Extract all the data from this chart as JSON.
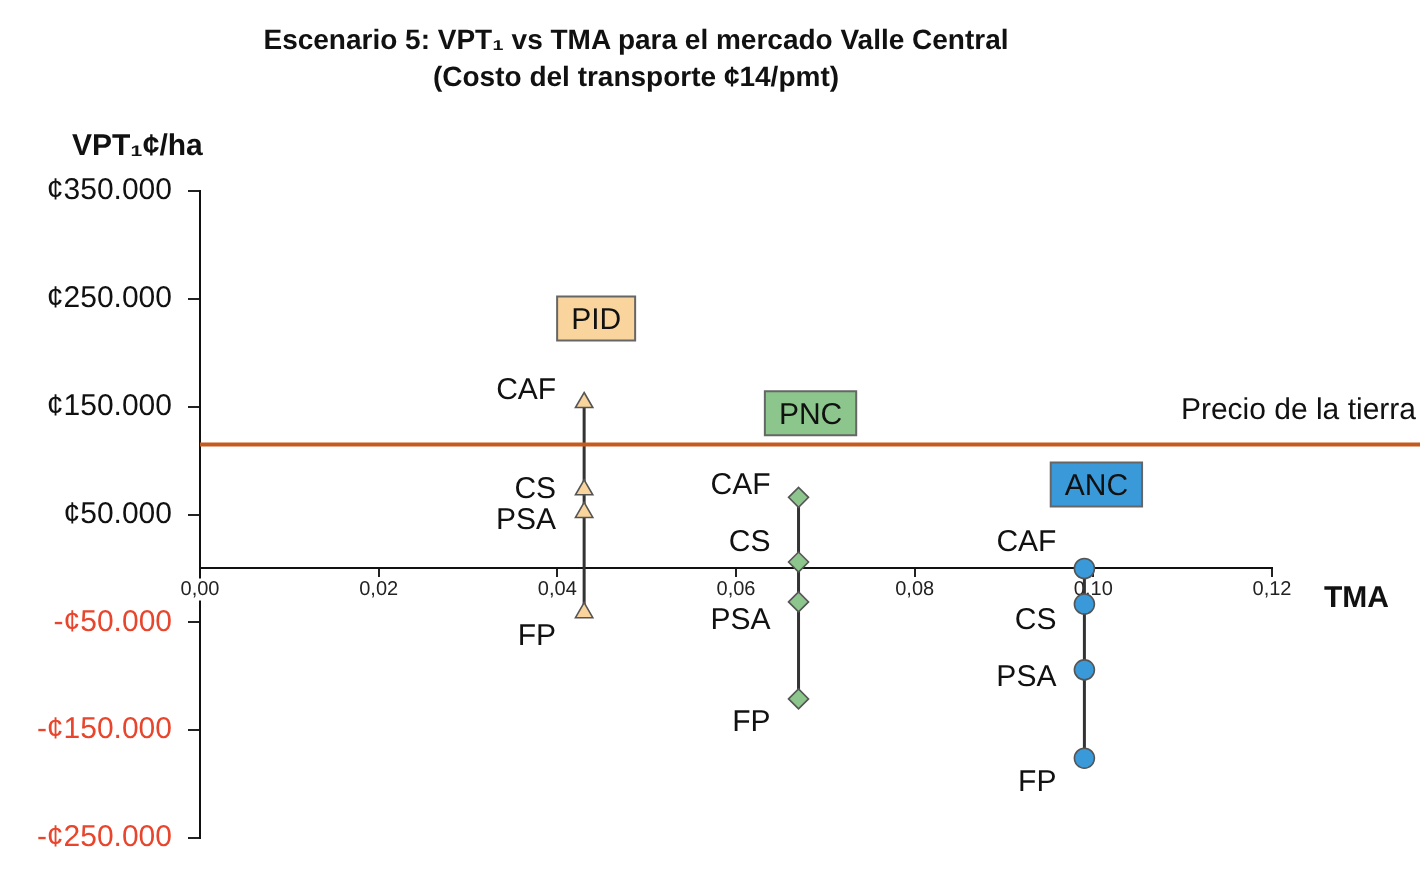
{
  "chart_data": {
    "type": "line",
    "title": "Escenario 5: VPT₁ vs TMA para el mercado Valle Central",
    "subtitle": "(Costo del transporte ¢14/pmt)",
    "xlabel": "TMA",
    "ylabel": "VPT₁¢/ha",
    "xlim": [
      0,
      0.12
    ],
    "xticks": [
      {
        "value": 0,
        "label": "0,00"
      },
      {
        "value": 0.02,
        "label": "0,02"
      },
      {
        "value": 0.04,
        "label": "0,04"
      },
      {
        "value": 0.06,
        "label": "0,06"
      },
      {
        "value": 0.08,
        "label": "0,08"
      },
      {
        "value": 0.1,
        "label": "0,10"
      },
      {
        "value": 0.12,
        "label": "0,12"
      }
    ],
    "ylim": [
      -250000,
      350000
    ],
    "yticks": [
      {
        "value": -250000,
        "label": "-¢250.000"
      },
      {
        "value": -150000,
        "label": "-¢150.000"
      },
      {
        "value": -50000,
        "label": "-¢50.000"
      },
      {
        "value": 50000,
        "label": "¢50.000"
      },
      {
        "value": 150000,
        "label": "¢150.000"
      },
      {
        "value": 250000,
        "label": "¢250.000"
      },
      {
        "value": 350000,
        "label": "¢350.000"
      }
    ],
    "grid": false,
    "legend": false,
    "series": [
      {
        "name": "PID",
        "color": "#f9d49c",
        "marker": "triangle",
        "x": [
          0.043,
          0.043,
          0.043,
          0.043
        ],
        "values": [
          154000,
          73000,
          52000,
          -41000
        ]
      },
      {
        "name": "PNC",
        "color": "#8cc68c",
        "marker": "diamond",
        "x": [
          0.067,
          0.067,
          0.067,
          0.067
        ],
        "values": [
          66000,
          6000,
          -31000,
          -121000
        ]
      },
      {
        "name": "ANC",
        "color": "#3a9ad9",
        "marker": "circle",
        "x": [
          0.099,
          0.099,
          0.099,
          0.099
        ],
        "values": [
          0,
          -33000,
          -94000,
          -176000
        ]
      }
    ],
    "ref_lines": [
      {
        "axis": "y",
        "value": 115000,
        "label": "Precio de la tierra",
        "color": "#c55a1f"
      }
    ],
    "annotations": [
      {
        "text": "CAF",
        "x": 0.043,
        "y": 154000
      },
      {
        "text": "CS",
        "x": 0.043,
        "y": 73000
      },
      {
        "text": "PSA",
        "x": 0.043,
        "y": 52000
      },
      {
        "text": "FP",
        "x": 0.043,
        "y": -41000
      },
      {
        "text": "CAF",
        "x": 0.067,
        "y": 66000
      },
      {
        "text": "CS",
        "x": 0.067,
        "y": 6000
      },
      {
        "text": "PSA",
        "x": 0.067,
        "y": -31000
      },
      {
        "text": "FP",
        "x": 0.067,
        "y": -121000
      },
      {
        "text": "CAF",
        "x": 0.099,
        "y": 0
      },
      {
        "text": "CS",
        "x": 0.099,
        "y": -33000
      },
      {
        "text": "PSA",
        "x": 0.099,
        "y": -94000
      },
      {
        "text": "FP",
        "x": 0.099,
        "y": -176000
      }
    ]
  }
}
